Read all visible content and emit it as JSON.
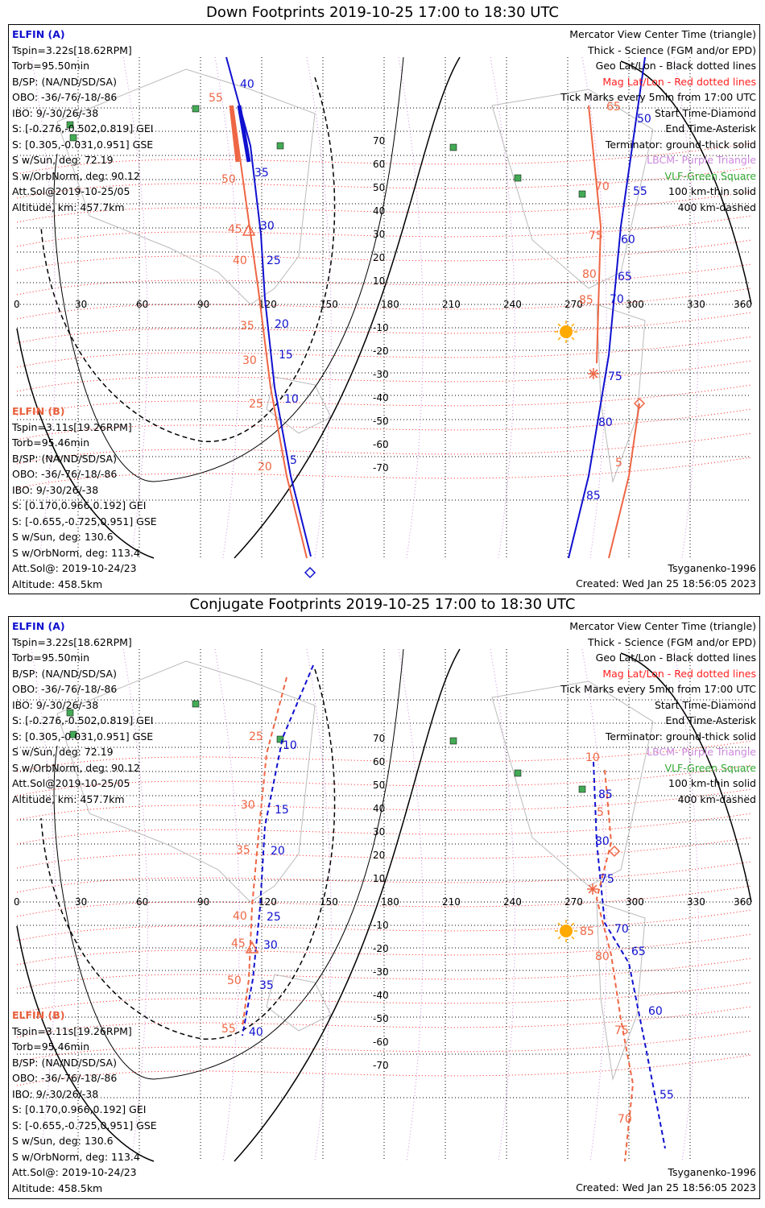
{
  "panels": [
    {
      "title": "Down Footprints 2019-10-25 17:00 to 18:30 UTC",
      "elfin_a": {
        "header": "ELFIN (A)",
        "lines": [
          "Tspin=3.22s[18.62RPM]",
          "Torb=95.50min",
          "B/SP: (NA/ND/SD/SA)",
          "OBO: -36/-76/-18/-86",
          "IBO: 9/-30/26/-38",
          "S: [-0.276,-0.502,0.819] GEI",
          "S: [0.305,-0.031,0.951] GSE",
          "S w/Sun, deg: 72.19",
          "S w/OrbNorm, deg: 90.12",
          "Att.Sol@2019-10-25/05",
          "Altitude, km: 457.7km"
        ]
      },
      "elfin_b": {
        "header": "ELFIN (B)",
        "lines": [
          "Tspin=3.11s[19.26RPM]",
          "Torb=95.46min",
          "B/SP: (NA/ND/SD/SA)",
          "OBO: -36/-76/-18/-86",
          "IBO: 9/-30/26/-38",
          "S: [0.170,0.966,0.192] GEI",
          "S: [-0.655,-0.725,0.951] GSE",
          "S w/Sun, deg: 130.6",
          "S w/OrbNorm, deg: 113.4",
          "Att.Sol@: 2019-10-24/23",
          "Altitude: 458.5km"
        ]
      },
      "legend": [
        "Mercator View Center Time (triangle)",
        "Thick - Science (FGM and/or EPD)",
        "Geo Lat/Lon - Black dotted lines",
        "Mag Lat/Lon - Red dotted lines",
        "Tick Marks every 5min from 17:00 UTC",
        "Start Time-Diamond",
        "End Time-Asterisk",
        "Terminator: ground-thick solid",
        "LBCM- Purple Triangle",
        "VLF-Green Square",
        "100 km-thin solid",
        "400 km-dashed"
      ],
      "model": "Tsyganenko-1996",
      "created": "Created: Wed Jan 25 18:56:05 2023",
      "blue_labels": [
        "40",
        "35",
        "30",
        "25",
        "20",
        "15",
        "10",
        "5",
        "50",
        "55",
        "60",
        "65",
        "70",
        "75",
        "80",
        "85"
      ],
      "red_labels": [
        "55",
        "50",
        "45",
        "40",
        "35",
        "30",
        "25",
        "20",
        "65",
        "70",
        "75",
        "80",
        "85",
        "5"
      ]
    },
    {
      "title": "Conjugate Footprints 2019-10-25 17:00 to 18:30 UTC",
      "elfin_a": {
        "header": "ELFIN (A)",
        "lines": [
          "Tspin=3.22s[18.62RPM]",
          "Torb=95.50min",
          "B/SP: (NA/ND/SD/SA)",
          "OBO: -36/-76/-18/-86",
          "IBO: 9/-30/26/-38",
          "S: [-0.276,-0.502,0.819] GEI",
          "S: [0.305,-0.031,0.951] GSE",
          "S w/Sun, deg: 72.19",
          "S w/OrbNorm, deg: 90.12",
          "Att.Sol@2019-10-25/05",
          "Altitude, km: 457.7km"
        ]
      },
      "elfin_b": {
        "header": "ELFIN (B)",
        "lines": [
          "Tspin=3.11s[19.26RPM]",
          "Torb=95.46min",
          "B/SP: (NA/ND/SD/SA)",
          "OBO: -36/-76/-18/-86",
          "IBO: 9/-30/26/-38",
          "S: [0.170,0.966,0.192] GEI",
          "S: [-0.655,-0.725,0.951] GSE",
          "S w/Sun, deg: 130.6",
          "S w/OrbNorm, deg: 113.4",
          "Att.Sol@: 2019-10-24/23",
          "Altitude: 458.5km"
        ]
      },
      "legend": [
        "Mercator View Center Time (triangle)",
        "Thick - Science (FGM and/or EPD)",
        "Geo Lat/Lon - Black dotted lines",
        "Mag Lat/Lon - Red dotted lines",
        "Tick Marks every 5min from 17:00 UTC",
        "Start Time-Diamond",
        "End Time-Asterisk",
        "Terminator: ground-thick solid",
        "LBCM- Purple Triangle",
        "VLF-Green Square",
        "100 km-thin solid",
        "400 km-dashed"
      ],
      "model": "Tsyganenko-1996",
      "created": "Created: Wed Jan 25 18:56:05 2023",
      "blue_labels": [
        "10",
        "15",
        "20",
        "25",
        "30",
        "35",
        "40",
        "85",
        "80",
        "75",
        "70",
        "65",
        "60",
        "55"
      ],
      "red_labels": [
        "25",
        "30",
        "35",
        "40",
        "45",
        "50",
        "55",
        "10",
        "5",
        "85",
        "80",
        "75",
        "70"
      ]
    }
  ],
  "map_axes": {
    "lon_labels": [
      "0",
      "30",
      "60",
      "90",
      "120",
      "150",
      "180",
      "210",
      "240",
      "270",
      "300",
      "330",
      "360"
    ],
    "lat_labels": [
      "70",
      "60",
      "50",
      "40",
      "30",
      "20",
      "10",
      "-10",
      "-20",
      "-30",
      "-40",
      "-50",
      "-60",
      "-70"
    ]
  },
  "colors": {
    "elfin_a": "#1010d0",
    "elfin_b": "#ee6644",
    "mag_grid": "#ff2020",
    "geo_grid": "#000000",
    "lbcm": "#cc66ee",
    "vlf": "#44aa55",
    "sun": "#ffaa00"
  }
}
